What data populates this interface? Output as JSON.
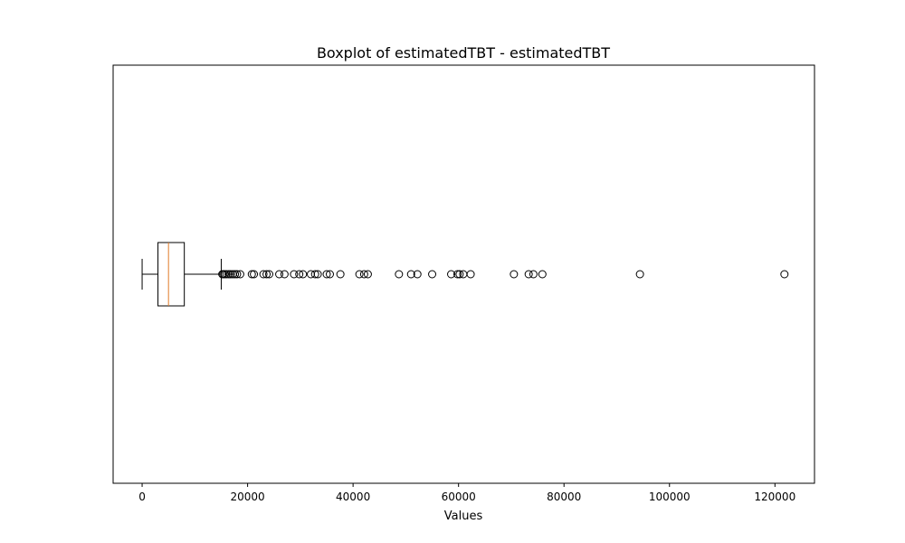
{
  "chart_data": {
    "type": "boxplot",
    "orientation": "horizontal",
    "title": "Boxplot of estimatedTBT - estimatedTBT",
    "xlabel": "Values",
    "ylabel": "",
    "xlim": [
      -5500,
      127500
    ],
    "xticks": [
      0,
      20000,
      40000,
      60000,
      80000,
      100000,
      120000
    ],
    "xtick_labels": [
      "0",
      "20000",
      "40000",
      "60000",
      "80000",
      "100000",
      "120000"
    ],
    "grid": false,
    "box": {
      "whisker_low": 0,
      "q1": 3000,
      "median": 5000,
      "q3": 8000,
      "whisker_high": 15000
    },
    "outliers": [
      15200,
      15400,
      15700,
      16000,
      16400,
      16800,
      17200,
      17600,
      18000,
      18600,
      20800,
      21200,
      23000,
      23600,
      24100,
      26000,
      27000,
      28800,
      29800,
      30500,
      32000,
      32800,
      33300,
      35000,
      35600,
      37600,
      41200,
      42100,
      42800,
      48700,
      51000,
      52200,
      55000,
      58600,
      59800,
      60200,
      60900,
      62300,
      70500,
      73300,
      74200,
      75900,
      94400,
      121800
    ],
    "colors": {
      "box": "#000000",
      "median": "#e07b28",
      "outlier_edge": "#000000"
    }
  }
}
